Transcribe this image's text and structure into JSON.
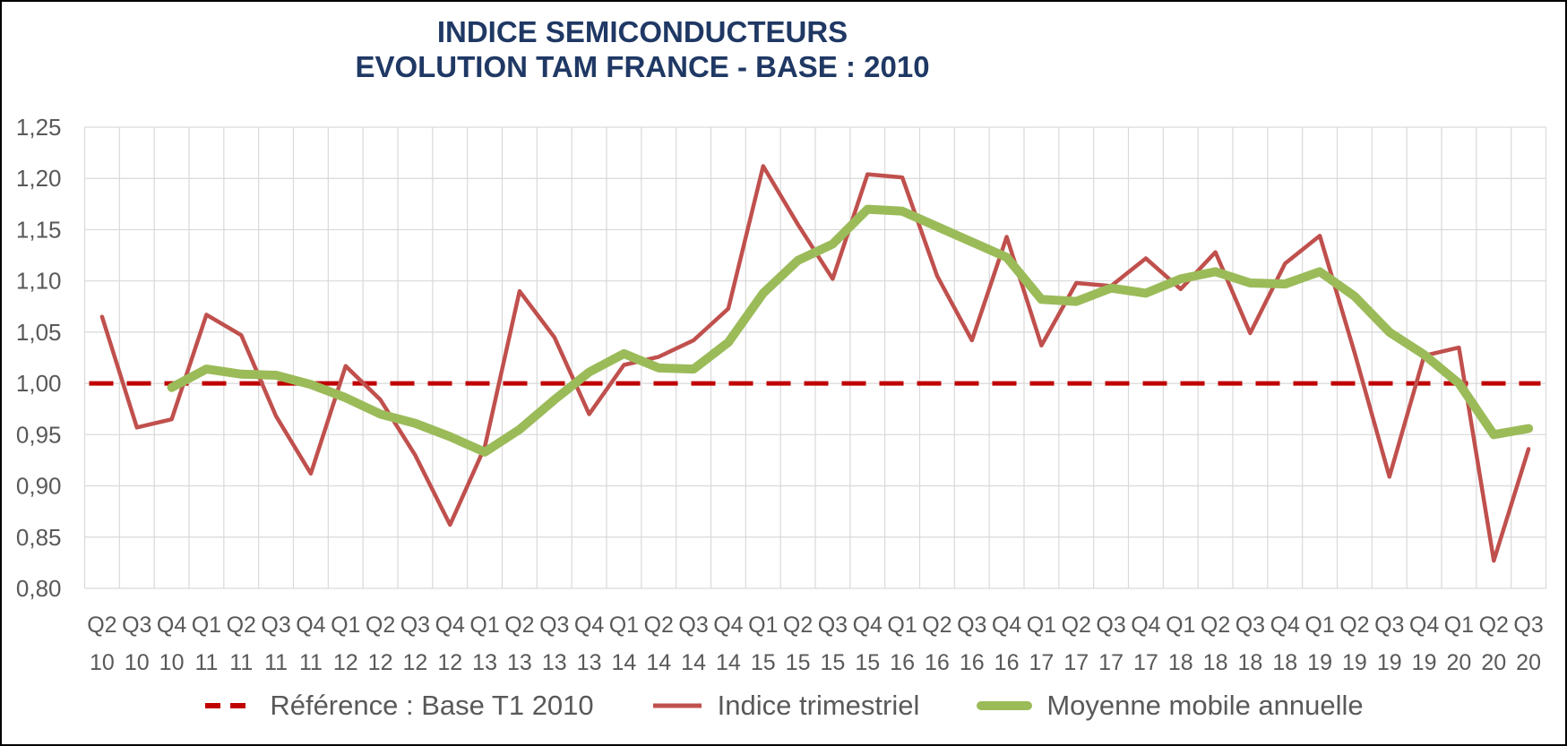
{
  "chart": {
    "title_line1": "INDICE SEMICONDUCTEURS",
    "title_line2": "EVOLUTION TAM FRANCE - BASE : 2010",
    "title_color": "#1F3864"
  },
  "chart_data": {
    "type": "line",
    "title": "INDICE SEMICONDUCTEURS - EVOLUTION TAM FRANCE - BASE : 2010",
    "xlabel": "",
    "ylabel": "",
    "grid": true,
    "grid_color": "#D9D9D9",
    "axis_color": "#595959",
    "legend_position": "bottom",
    "y_axis": {
      "min": 0.8,
      "max": 1.25,
      "step": 0.05,
      "decimal_separator": ",",
      "tick_labels": [
        "0,80",
        "0,85",
        "0,90",
        "0,95",
        "1,00",
        "1,05",
        "1,10",
        "1,15",
        "1,20",
        "1,25"
      ]
    },
    "categories": [
      "Q2 10",
      "Q3 10",
      "Q4 10",
      "Q1 11",
      "Q2 11",
      "Q3 11",
      "Q4 11",
      "Q1 12",
      "Q2 12",
      "Q3 12",
      "Q4 12",
      "Q1 13",
      "Q2 13",
      "Q3 13",
      "Q4 13",
      "Q1 14",
      "Q2 14",
      "Q3 14",
      "Q4 14",
      "Q1 15",
      "Q2 15",
      "Q3 15",
      "Q4 15",
      "Q1 16",
      "Q2 16",
      "Q3 16",
      "Q4 16",
      "Q1 17",
      "Q2 17",
      "Q3 17",
      "Q4 17",
      "Q1 18",
      "Q2 18",
      "Q3 18",
      "Q4 18",
      "Q1 19",
      "Q2 19",
      "Q3 19",
      "Q4 19",
      "Q1 20",
      "Q2 20",
      "Q3 20"
    ],
    "series": [
      {
        "name": "Référence : Base T1 2010",
        "type": "reference",
        "color": "#C00000",
        "value": 1.0,
        "stroke_width": 5,
        "data_name": "reference-line"
      },
      {
        "name": "Indice trimestriel",
        "type": "line",
        "color": "#C0504D",
        "stroke_width": 4.5,
        "data_name": "quarterly-index-line",
        "values": [
          1.065,
          0.957,
          0.965,
          1.067,
          1.047,
          0.968,
          0.912,
          1.017,
          0.984,
          0.93,
          0.862,
          0.938,
          1.09,
          1.045,
          0.97,
          1.018,
          1.026,
          1.042,
          1.073,
          1.212,
          1.155,
          1.102,
          1.204,
          1.201,
          1.105,
          1.042,
          1.143,
          1.037,
          1.098,
          1.095,
          1.122,
          1.092,
          1.128,
          1.049,
          1.117,
          1.144,
          1.03,
          0.909,
          1.027,
          1.035,
          0.827,
          0.936
        ]
      },
      {
        "name": "Moyenne mobile annuelle",
        "type": "line",
        "color": "#9BBB59",
        "stroke_width": 10,
        "data_name": "moving-average-line",
        "values": [
          null,
          null,
          0.996,
          1.014,
          1.009,
          1.008,
          0.999,
          0.986,
          0.97,
          0.961,
          0.948,
          0.933,
          0.955,
          0.984,
          1.011,
          1.029,
          1.015,
          1.014,
          1.04,
          1.088,
          1.12,
          1.136,
          1.17,
          1.168,
          1.153,
          1.138,
          1.123,
          1.082,
          1.08,
          1.093,
          1.088,
          1.102,
          1.109,
          1.098,
          1.097,
          1.109,
          1.085,
          1.05,
          1.028,
          1.0,
          0.95,
          0.956
        ]
      }
    ]
  },
  "legend": {
    "text_color": "#595959"
  }
}
